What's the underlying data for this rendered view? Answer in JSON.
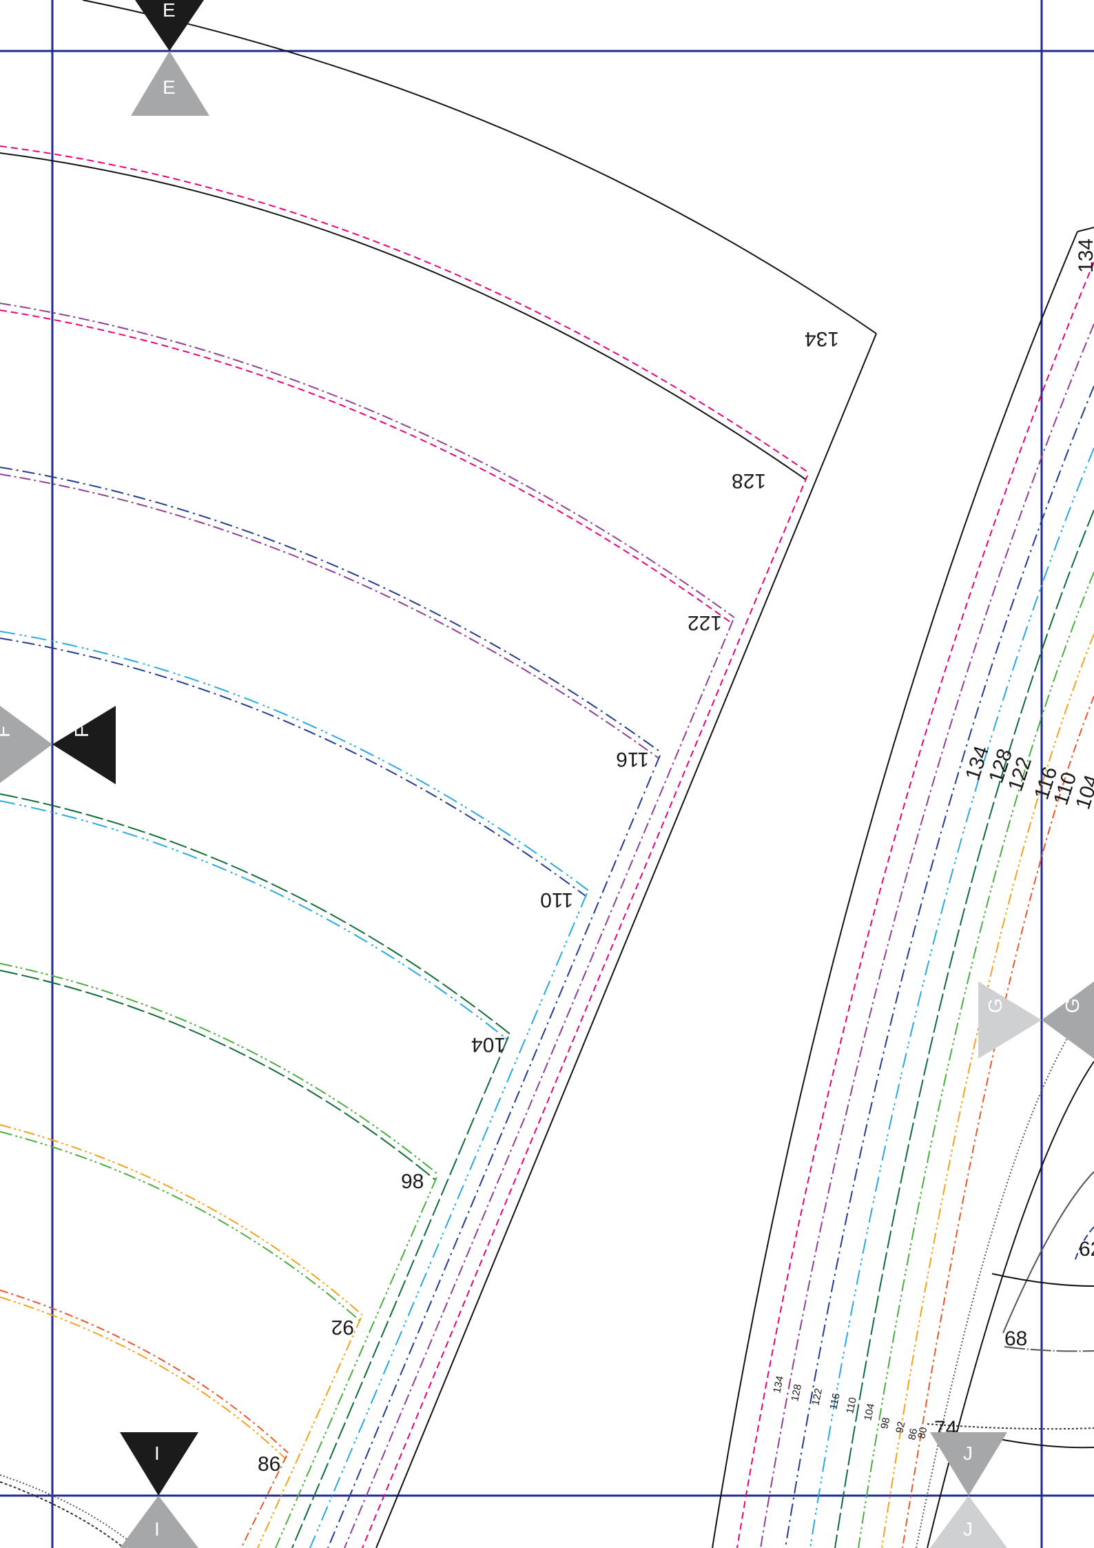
{
  "colors": {
    "border": "#1e2a8c",
    "outline": "#111111",
    "marker_dark": "#1b1b1b",
    "marker_grey": "#a6a7a9",
    "marker_light": "#cfd0d2",
    "s134": "#111111",
    "s128": "#e6007e",
    "s122": "#8e3f96",
    "s116": "#233a8f",
    "s110": "#27a8e0",
    "s104": "#0f6b35",
    "s98": "#4aad3f",
    "s92": "#f5a11c",
    "s86": "#e8572a",
    "s80": "#555555",
    "s74": "#333333"
  },
  "markers": {
    "e_top": "E",
    "e_bottom": "E",
    "f_left": "F",
    "f_right": "F",
    "g_left": "G",
    "g_right": "G",
    "i_top": "I",
    "i_bottom": "I",
    "j_top": "J",
    "j_bottom": "J"
  },
  "left_piece": {
    "labels": {
      "s134": "134",
      "s128": "128",
      "s122": "122",
      "s116": "116",
      "s110": "110",
      "s104": "104",
      "s98": "98",
      "s92": "92",
      "s86": "86"
    }
  },
  "right_piece": {
    "side_labels": [
      "134",
      "128",
      "122",
      "116",
      "110",
      "104"
    ],
    "bottom_labels": [
      "134",
      "128",
      "122",
      "116",
      "110",
      "104",
      "98",
      "92",
      "86",
      "80"
    ],
    "inner_labels": {
      "s74": "74",
      "s68": "68",
      "s62": "62"
    }
  }
}
